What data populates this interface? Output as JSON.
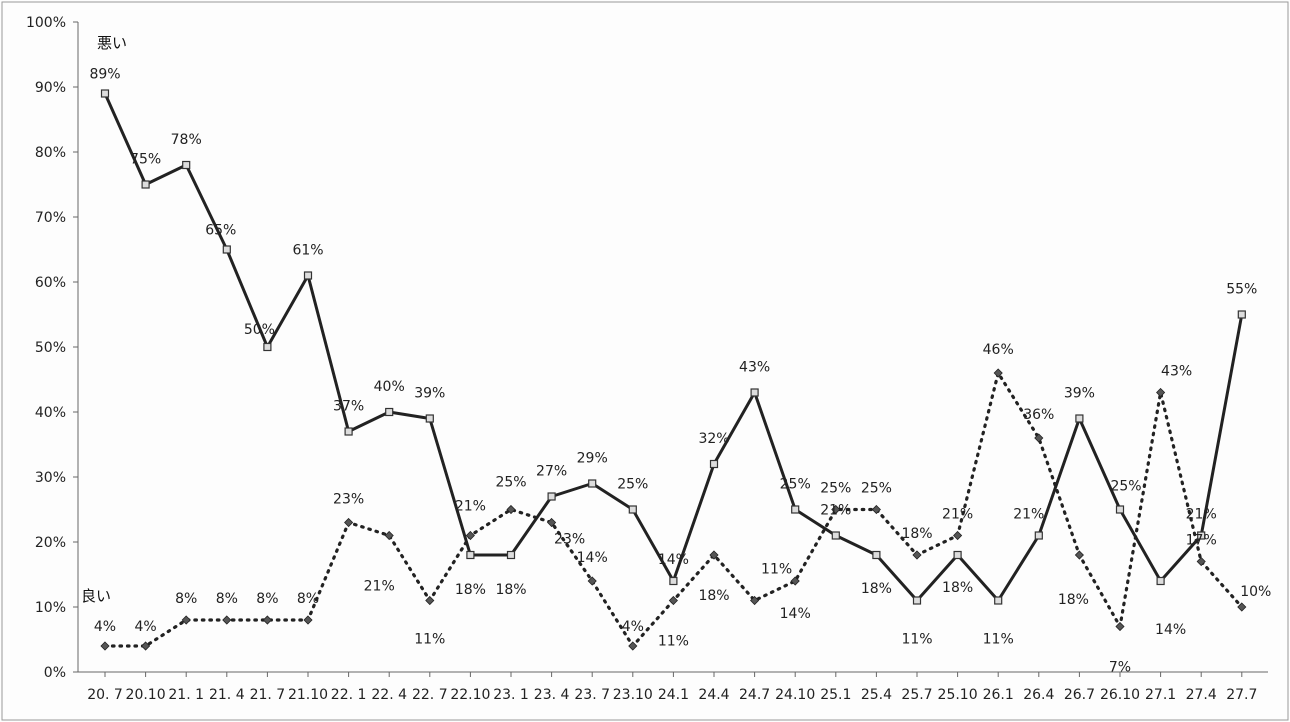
{
  "chart_data": {
    "type": "line",
    "categories": [
      "20. 7",
      "20.10",
      "21. 1",
      "21. 4",
      "21. 7",
      "21.10",
      "22. 1",
      "22. 4",
      "22. 7",
      "22.10",
      "23. 1",
      "23. 4",
      "23. 7",
      "23.10",
      "24.1",
      "24.4",
      "24.7",
      "24.10",
      "25.1",
      "25.4",
      "25.7",
      "25.10",
      "26.1",
      "26.4",
      "26.7",
      "26.10",
      "27.1",
      "27.4",
      "27.7"
    ],
    "series": [
      {
        "name": "悪い",
        "style": "solid",
        "values": [
          89,
          75,
          78,
          65,
          50,
          61,
          37,
          40,
          39,
          18,
          18,
          27,
          29,
          25,
          14,
          32,
          43,
          25,
          21,
          18,
          11,
          18,
          11,
          21,
          39,
          25,
          14,
          21,
          55
        ],
        "labels": [
          "89%",
          "75%",
          "78%",
          "65%",
          "50%",
          "61%",
          "37%",
          "40%",
          "39%",
          "18%",
          "18%",
          "27%",
          "29%",
          "25%",
          "14%",
          "32%",
          "43%",
          "25%",
          "21%",
          "18%",
          "11%",
          "18%",
          "11%",
          "21%",
          "39%",
          "25%",
          "14%",
          "21%",
          "55%"
        ]
      },
      {
        "name": "良い",
        "style": "dotted",
        "values": [
          4,
          4,
          8,
          8,
          8,
          8,
          23,
          21,
          11,
          21,
          25,
          23,
          14,
          4,
          11,
          18,
          11,
          14,
          25,
          25,
          18,
          21,
          46,
          36,
          18,
          7,
          43,
          17,
          10
        ],
        "labels": [
          "4%",
          "4%",
          "8%",
          "8%",
          "8%",
          "8%",
          "23%",
          "21%",
          "11%",
          "21%",
          "25%",
          "23%",
          "14%",
          "4%",
          "11%",
          "18%",
          "11%",
          "14%",
          "25%",
          "25%",
          "18%",
          "21%",
          "46%",
          "36%",
          "18%",
          "7%",
          "43%",
          "17%",
          "10%"
        ]
      }
    ],
    "y_ticks": [
      "0%",
      "10%",
      "20%",
      "30%",
      "40%",
      "50%",
      "60%",
      "70%",
      "80%",
      "90%",
      "100%"
    ],
    "ylim": [
      0,
      100
    ],
    "grid": false,
    "colors": {
      "line": "#222222",
      "marker": "#555555",
      "axis": "#666666"
    }
  }
}
